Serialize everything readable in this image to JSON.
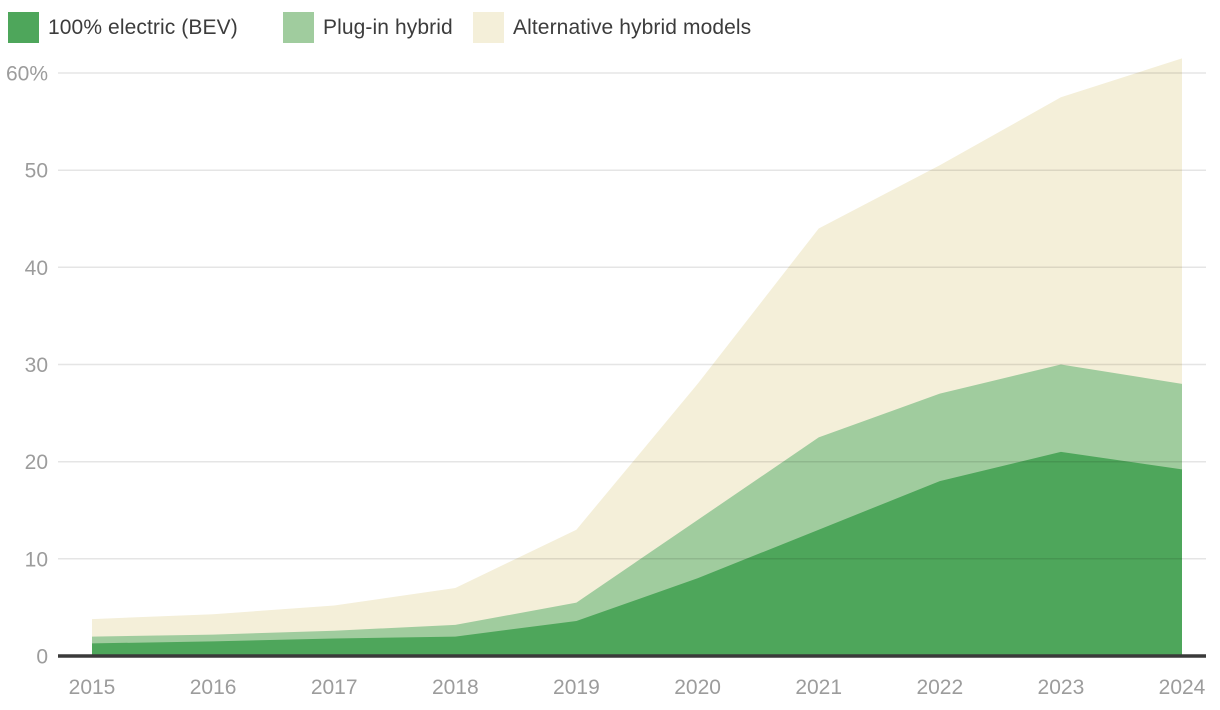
{
  "chart_data": {
    "type": "area",
    "stacked": true,
    "title": "",
    "xlabel": "",
    "ylabel": "",
    "x": [
      2015,
      2016,
      2017,
      2018,
      2019,
      2020,
      2021,
      2022,
      2023,
      2024
    ],
    "series": [
      {
        "name": "100% electric (BEV)",
        "color": "#4ea65b",
        "values": [
          1.3,
          1.5,
          1.8,
          2.0,
          3.6,
          8.0,
          13.0,
          18.0,
          21.0,
          19.2
        ]
      },
      {
        "name": "Plug-in hybrid",
        "color": "#a0cc9e",
        "values": [
          0.7,
          0.7,
          0.8,
          1.2,
          1.9,
          6.0,
          9.5,
          9.0,
          9.0,
          8.8
        ]
      },
      {
        "name": "Alternative hybrid models",
        "color": "#f4efd9",
        "values": [
          1.8,
          2.1,
          2.6,
          3.8,
          7.5,
          14.0,
          21.5,
          23.5,
          27.5,
          33.5
        ]
      }
    ],
    "stack_totals": [
      3.8,
      4.3,
      5.2,
      7.0,
      13.0,
      28.0,
      44.0,
      50.5,
      57.5,
      61.5
    ],
    "ylim": [
      0,
      62
    ],
    "yticks": [
      {
        "value": 0,
        "label": "0"
      },
      {
        "value": 10,
        "label": "10"
      },
      {
        "value": 20,
        "label": "20"
      },
      {
        "value": 30,
        "label": "30"
      },
      {
        "value": 40,
        "label": "40"
      },
      {
        "value": 50,
        "label": "50"
      },
      {
        "value": 60,
        "label": "60%"
      }
    ],
    "grid": true,
    "legend_position": "top-left"
  },
  "styles": {
    "axis_label_color": "#9c9c9c",
    "legend_text_color": "#3c3c3c",
    "axis_line_color": "#3a3a3a",
    "gridline_color": "rgba(0,0,0,0.10)",
    "background": "#ffffff"
  }
}
